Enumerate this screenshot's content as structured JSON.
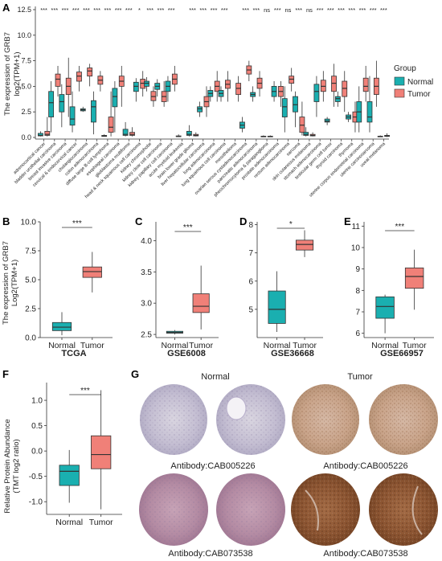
{
  "panels": {
    "A": "A",
    "B": "B",
    "C": "C",
    "D": "D",
    "E": "E",
    "F": "F",
    "G": "G"
  },
  "colors": {
    "normal": "#1AAFB0",
    "tumor": "#F08078",
    "tissue_light": "#C8C2D4",
    "tissue_dark": "#8A5A3A"
  },
  "panel_a": {
    "ylabel_1": "The expression of GRB7",
    "ylabel_2": "log2(TPM+1)",
    "yticks": [
      "0.0",
      "2.5",
      "5.0",
      "7.5",
      "10.0",
      "12.5"
    ],
    "legend": {
      "title": "Group",
      "normal": "Normal",
      "tumor": "Tumor"
    },
    "cancers": [
      {
        "name": "adrenocortical cancer",
        "sig": "***",
        "n": [
          0.1,
          0.15,
          0.2,
          0.4,
          0.6
        ],
        "t": [
          0.1,
          0.2,
          0.3,
          0.6,
          2.0
        ],
        "hasN": true
      },
      {
        "name": "bladder urothelial carcinoma",
        "sig": "***",
        "n": [
          0.5,
          2.0,
          3.4,
          4.5,
          5.5
        ],
        "t": [
          4.0,
          5.0,
          5.7,
          6.2,
          7.0
        ],
        "hasN": true
      },
      {
        "name": "breast invasive carcinoma",
        "sig": "***",
        "n": [
          1.0,
          2.5,
          3.5,
          4.2,
          5.2
        ],
        "t": [
          2.0,
          4.2,
          5.0,
          5.8,
          7.8
        ],
        "hasN": true
      },
      {
        "name": "cervical & endocervical cancer",
        "sig": "***",
        "n": [
          0.5,
          1.2,
          1.8,
          3.0,
          4.5
        ],
        "t": [
          4.5,
          5.5,
          6.0,
          6.4,
          7.0
        ],
        "hasN": true
      },
      {
        "name": "cholangiocarcinoma",
        "sig": "***",
        "n": [
          2.5,
          2.6,
          2.7,
          2.8,
          3.0
        ],
        "t": [
          5.0,
          6.0,
          6.5,
          6.8,
          7.2
        ],
        "hasN": true
      },
      {
        "name": "colon adenocarcinoma",
        "sig": "***",
        "n": [
          0.3,
          1.5,
          3.0,
          3.6,
          4.5
        ],
        "t": [
          4.5,
          5.2,
          5.6,
          6.0,
          6.5
        ],
        "hasN": true
      },
      {
        "name": "diffuse large B-cell lymphoma",
        "sig": "***",
        "n": [
          0.1,
          0.1,
          0.15,
          0.2,
          0.3
        ],
        "t": [
          0.1,
          0.5,
          1.0,
          2.0,
          4.5
        ],
        "hasN": true
      },
      {
        "name": "esophageal carcinoma",
        "sig": "***",
        "n": [
          0.5,
          3.0,
          4.0,
          4.8,
          5.5
        ],
        "t": [
          3.0,
          5.0,
          5.5,
          6.0,
          7.0
        ],
        "hasN": true
      },
      {
        "name": "glioblastoma multiforme",
        "sig": "***",
        "n": [
          0.1,
          0.2,
          0.3,
          0.8,
          1.5
        ],
        "t": [
          0.1,
          0.2,
          0.3,
          0.5,
          1.0
        ],
        "hasN": true
      },
      {
        "name": "head & neck squamous cell carcinoma",
        "sig": "*",
        "n": [
          3.5,
          4.5,
          5.0,
          5.4,
          5.8
        ],
        "t": [
          4.0,
          4.8,
          5.3,
          5.7,
          6.5
        ],
        "hasN": true
      },
      {
        "name": "kidney chromophobe",
        "sig": "***",
        "n": [
          4.5,
          5.0,
          5.3,
          5.5,
          5.9
        ],
        "t": [
          3.0,
          3.6,
          4.0,
          4.5,
          5.0
        ],
        "hasN": true
      },
      {
        "name": "kidney clear cell carcinoma",
        "sig": "***",
        "n": [
          4.0,
          4.7,
          5.0,
          5.3,
          5.7
        ],
        "t": [
          3.0,
          3.5,
          4.0,
          4.5,
          5.5
        ],
        "hasN": true
      },
      {
        "name": "kidney papillary cell carcinoma",
        "sig": "***",
        "n": [
          3.5,
          4.5,
          5.0,
          5.5,
          6.0
        ],
        "t": [
          4.5,
          5.2,
          5.7,
          6.2,
          7.0
        ],
        "hasN": true
      },
      {
        "name": "acute myeloid leukemia",
        "sig": "",
        "n": [
          0.05,
          0.08,
          0.1,
          0.15,
          0.3
        ],
        "t": [
          0,
          0,
          0,
          0,
          0
        ],
        "hasN": true,
        "noT": true
      },
      {
        "name": "brain lower grade glioma",
        "sig": "***",
        "n": [
          0.1,
          0.2,
          0.3,
          0.6,
          1.2
        ],
        "t": [
          0.1,
          0.15,
          0.2,
          0.3,
          0.5
        ],
        "hasN": true
      },
      {
        "name": "liver hepatocellular carcinoma",
        "sig": "***",
        "n": [
          2.0,
          2.5,
          2.8,
          3.0,
          3.5
        ],
        "t": [
          2.0,
          3.0,
          3.5,
          4.0,
          5.0
        ],
        "hasN": true
      },
      {
        "name": "lung adenocarcinoma",
        "sig": "***",
        "n": [
          3.5,
          4.0,
          4.3,
          4.6,
          5.0
        ],
        "t": [
          3.5,
          4.5,
          5.0,
          5.5,
          6.5
        ],
        "hasN": true
      },
      {
        "name": "lung squamous cell carcinoma",
        "sig": "***",
        "n": [
          3.5,
          4.0,
          4.3,
          4.6,
          5.0
        ],
        "t": [
          3.5,
          4.8,
          5.2,
          5.6,
          6.5
        ],
        "hasN": true
      },
      {
        "name": "mesothelioma",
        "sig": "",
        "n": [
          0,
          0,
          0,
          0,
          0
        ],
        "t": [
          3.5,
          4.2,
          4.8,
          5.3,
          6.0
        ],
        "noN": true
      },
      {
        "name": "ovarian serous cystadenocarcinoma",
        "sig": "***",
        "n": [
          0.5,
          0.9,
          1.2,
          1.5,
          2.0
        ],
        "t": [
          5.5,
          6.2,
          6.6,
          7.0,
          7.5
        ],
        "hasN": true
      },
      {
        "name": "pancreatic adenocarcinoma",
        "sig": "***",
        "n": [
          3.5,
          4.0,
          4.2,
          4.4,
          5.0
        ],
        "t": [
          4.0,
          4.8,
          5.3,
          5.8,
          6.5
        ],
        "hasN": true
      },
      {
        "name": "pheochromocytoma & paraganglioma",
        "sig": "ns",
        "n": [
          0.05,
          0.08,
          0.1,
          0.12,
          0.2
        ],
        "t": [
          0.05,
          0.07,
          0.1,
          0.12,
          0.2
        ],
        "hasN": true
      },
      {
        "name": "prostate adenocarcinoma",
        "sig": "***",
        "n": [
          3.5,
          4.0,
          4.5,
          5.0,
          5.5
        ],
        "t": [
          3.0,
          4.0,
          4.5,
          5.0,
          5.5
        ],
        "hasN": true
      },
      {
        "name": "rectum adenocarcinoma",
        "sig": "ns",
        "n": [
          0.5,
          2.0,
          3.0,
          3.8,
          5.0
        ],
        "t": [
          4.5,
          5.3,
          5.7,
          6.0,
          6.8
        ],
        "hasN": true
      },
      {
        "name": "sarcoma",
        "sig": "***",
        "n": [
          1.0,
          2.5,
          3.2,
          4.0,
          4.5
        ],
        "t": [
          0.2,
          0.5,
          1.2,
          2.0,
          3.5
        ],
        "hasN": true
      },
      {
        "name": "skin cutaneous melanoma",
        "sig": "ns",
        "n": [
          0.1,
          0.2,
          0.3,
          0.5,
          1.0
        ],
        "t": [
          0.1,
          0.15,
          0.2,
          0.3,
          0.5
        ],
        "hasN": true
      },
      {
        "name": "stomach adenocarcinoma",
        "sig": "***",
        "n": [
          2.0,
          3.5,
          4.5,
          5.2,
          6.0
        ],
        "t": [
          3.5,
          4.5,
          5.0,
          5.6,
          6.5
        ],
        "hasN": true
      },
      {
        "name": "testicular germ cell tumor",
        "sig": "***",
        "n": [
          1.2,
          1.5,
          1.6,
          1.8,
          2.0
        ],
        "t": [
          3.0,
          4.5,
          5.3,
          6.0,
          7.2
        ],
        "hasN": true
      },
      {
        "name": "thyroid carcinoma",
        "sig": "***",
        "n": [
          3.0,
          3.5,
          3.8,
          4.0,
          4.5
        ],
        "t": [
          2.5,
          4.0,
          4.8,
          5.5,
          6.5
        ],
        "hasN": true
      },
      {
        "name": "thymoma",
        "sig": "***",
        "n": [
          1.5,
          1.8,
          2.0,
          2.2,
          2.5
        ],
        "t": [
          0.5,
          1.5,
          2.0,
          2.5,
          3.5
        ],
        "hasN": true
      },
      {
        "name": "uterine corpus endometrial carcinoma",
        "sig": "***",
        "n": [
          0.5,
          1.5,
          2.5,
          3.5,
          5.0
        ],
        "t": [
          3.5,
          4.5,
          5.0,
          5.8,
          7.0
        ],
        "hasN": true
      },
      {
        "name": "uterine carcinosarcoma",
        "sig": "***",
        "n": [
          0.5,
          1.5,
          2.0,
          3.5,
          6.0
        ],
        "t": [
          3.0,
          4.2,
          5.0,
          5.8,
          7.5
        ],
        "hasN": true
      },
      {
        "name": "uveal melanoma",
        "sig": "***",
        "n": [
          0.05,
          0.08,
          0.1,
          0.12,
          0.2
        ],
        "t": [
          0.05,
          0.1,
          0.15,
          0.2,
          0.4
        ],
        "hasN": true
      }
    ]
  },
  "panel_b": {
    "ylabel_1": "The expression of GRB7",
    "ylabel_2": "Log2(TPM+1)",
    "title": "TCGA",
    "sig": "***",
    "yticks": [
      "0.0",
      "2.5",
      "5.0",
      "7.5",
      "10.0"
    ],
    "xlabels": [
      "Normal",
      "Tumor"
    ]
  },
  "panel_c": {
    "title": "GSE6008",
    "sig": "***",
    "yticks": [
      "2.5",
      "3.0",
      "3.5",
      "4.0"
    ],
    "xlabels": [
      "Normal",
      "Tumor"
    ]
  },
  "panel_d": {
    "title": "GSE36668",
    "sig": "*",
    "yticks": [
      "5",
      "6",
      "7",
      "8"
    ],
    "xlabels": [
      "Normal",
      "Tumor"
    ]
  },
  "panel_e": {
    "title": "GSE66957",
    "sig": "***",
    "yticks": [
      "6",
      "7",
      "8",
      "9",
      "10",
      "11"
    ],
    "xlabels": [
      "Normal",
      "Tumor"
    ]
  },
  "panel_f": {
    "ylabel_1": "Relative Protein Abundance",
    "ylabel_2": "(TMT log2 ratio)",
    "sig": "***",
    "yticks": [
      "-1.0",
      "-0.5",
      "0.0",
      "0.5",
      "1.0"
    ],
    "xlabels": [
      "Normal",
      "Tumor"
    ]
  },
  "panel_g": {
    "normal_label": "Normal",
    "tumor_label": "Tumor",
    "antibody_1": "Antibody:CAB005226",
    "antibody_2": "Antibody:CAB005226",
    "antibody_3": "Antibody:CAB073538",
    "antibody_4": "Antibody:CAB073538"
  },
  "chart_data": [
    {
      "type": "box",
      "panel": "B",
      "title": "TCGA",
      "categories": [
        "Normal",
        "Tumor"
      ],
      "ylim": [
        0,
        10
      ],
      "series": [
        {
          "name": "Normal",
          "min": 0.2,
          "q1": 0.6,
          "median": 0.9,
          "q3": 1.3,
          "max": 2.2
        },
        {
          "name": "Tumor",
          "min": 3.9,
          "q1": 5.2,
          "median": 5.7,
          "q3": 6.1,
          "max": 7.4
        }
      ]
    },
    {
      "type": "box",
      "panel": "C",
      "title": "GSE6008",
      "categories": [
        "Normal",
        "Tumor"
      ],
      "ylim": [
        2.45,
        4.3
      ],
      "series": [
        {
          "name": "Normal",
          "min": 2.5,
          "q1": 2.52,
          "median": 2.53,
          "q3": 2.55,
          "max": 2.57
        },
        {
          "name": "Tumor",
          "min": 2.58,
          "q1": 2.85,
          "median": 2.95,
          "q3": 3.15,
          "max": 3.6
        }
      ]
    },
    {
      "type": "box",
      "panel": "D",
      "title": "GSE36668",
      "categories": [
        "Normal",
        "Tumor"
      ],
      "ylim": [
        4.0,
        8.1
      ],
      "series": [
        {
          "name": "Normal",
          "min": 4.2,
          "q1": 4.5,
          "median": 5.0,
          "q3": 5.65,
          "max": 6.35
        },
        {
          "name": "Tumor",
          "min": 6.85,
          "q1": 7.1,
          "median": 7.3,
          "q3": 7.45,
          "max": 7.8
        }
      ]
    },
    {
      "type": "box",
      "panel": "E",
      "title": "GSE66957",
      "categories": [
        "Normal",
        "Tumor"
      ],
      "ylim": [
        5.8,
        11.2
      ],
      "series": [
        {
          "name": "Normal",
          "min": 6.0,
          "q1": 6.7,
          "median": 7.25,
          "q3": 7.7,
          "max": 7.8
        },
        {
          "name": "Tumor",
          "min": 7.1,
          "q1": 8.1,
          "median": 8.65,
          "q3": 9.05,
          "max": 9.9
        }
      ]
    },
    {
      "type": "box",
      "panel": "F",
      "categories": [
        "Normal",
        "Tumor"
      ],
      "ylim": [
        -1.25,
        1.35
      ],
      "series": [
        {
          "name": "Normal",
          "min": -1.02,
          "q1": -0.68,
          "median": -0.4,
          "q3": -0.28,
          "max": 0.02
        },
        {
          "name": "Tumor",
          "min": -1.15,
          "q1": -0.35,
          "median": -0.07,
          "q3": 0.3,
          "max": 1.2
        }
      ]
    }
  ]
}
